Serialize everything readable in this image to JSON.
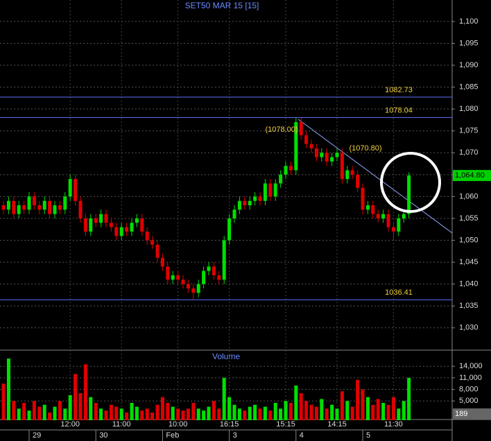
{
  "chart_data": {
    "type": "candlestick",
    "title": "SET50 MAR 15   [15]",
    "volume_title": "Volume",
    "categories": [
      null,
      null,
      null,
      null,
      null,
      null,
      null,
      null,
      null,
      null,
      null,
      null,
      null,
      "12:00",
      null,
      null,
      null,
      null,
      null,
      null,
      null,
      null,
      null,
      "11:00",
      null,
      null,
      null,
      null,
      null,
      null,
      null,
      null,
      null,
      null,
      "10:00",
      null,
      null,
      null,
      null,
      null,
      null,
      null,
      null,
      null,
      "16:15",
      null,
      null,
      null,
      null,
      null,
      null,
      null,
      null,
      null,
      null,
      "15:15",
      null,
      null,
      null,
      null,
      null,
      null,
      null,
      null,
      null,
      "14:15",
      null,
      null,
      null,
      null,
      null,
      null,
      null,
      null,
      null,
      null,
      "11:30",
      null,
      null,
      null
    ],
    "date_labels": [
      null,
      null,
      null,
      null,
      null,
      "29",
      null,
      null,
      null,
      null,
      null,
      null,
      null,
      null,
      null,
      null,
      null,
      null,
      "30",
      null,
      null,
      null,
      null,
      null,
      null,
      null,
      null,
      null,
      null,
      null,
      null,
      "Feb",
      null,
      null,
      null,
      null,
      null,
      null,
      null,
      null,
      null,
      null,
      null,
      null,
      "3",
      null,
      null,
      null,
      null,
      null,
      null,
      null,
      null,
      null,
      null,
      null,
      null,
      "4",
      null,
      null,
      null,
      null,
      null,
      null,
      null,
      null,
      null,
      null,
      null,
      null,
      "5",
      null,
      null,
      null,
      null,
      null,
      null,
      null,
      null,
      null
    ],
    "open": [
      1058,
      1057,
      1059,
      1056,
      1058,
      1057,
      1060,
      1058,
      1057,
      1059,
      1056,
      1058,
      1057,
      1060,
      1064,
      1059,
      1055,
      1052,
      1055,
      1054,
      1056,
      1054,
      1053,
      1051,
      1053,
      1052,
      1054,
      1055,
      1052,
      1050,
      1049,
      1046,
      1044,
      1041,
      1042,
      1041,
      1040,
      1039,
      1038,
      1040,
      1043,
      1044,
      1042,
      1041,
      1050,
      1055,
      1057,
      1059,
      1058,
      1059,
      1060,
      1059,
      1063,
      1060,
      1063,
      1065,
      1067,
      1066,
      1077,
      1074,
      1072,
      1071,
      1069,
      1070,
      1068,
      1069,
      1070,
      1064,
      1066,
      1065,
      1062,
      1057,
      1058,
      1056,
      1055,
      1056,
      1053,
      1052,
      1055,
      1056
    ],
    "high": [
      1059,
      1060,
      1060,
      1059,
      1059,
      1061,
      1061,
      1059,
      1060,
      1060,
      1059,
      1059,
      1061,
      1065,
      1065,
      1060,
      1056,
      1056,
      1056,
      1057,
      1057,
      1055,
      1054,
      1054,
      1054,
      1055,
      1056,
      1056,
      1053,
      1051,
      1050,
      1047,
      1045,
      1043,
      1043,
      1042,
      1041,
      1040,
      1041,
      1044,
      1045,
      1045,
      1043,
      1051,
      1056,
      1058,
      1060,
      1060,
      1060,
      1061,
      1061,
      1064,
      1064,
      1064,
      1066,
      1068,
      1068,
      1078,
      1078,
      1075,
      1073,
      1072,
      1071,
      1071,
      1070,
      1071,
      1071,
      1067,
      1067,
      1066,
      1063,
      1059,
      1059,
      1057,
      1057,
      1057,
      1054,
      1056,
      1057,
      1065.5
    ],
    "low": [
      1056,
      1056,
      1055,
      1055,
      1056,
      1056,
      1057,
      1056,
      1056,
      1055,
      1055,
      1056,
      1056,
      1059,
      1058,
      1054,
      1051,
      1051,
      1053,
      1053,
      1053,
      1052,
      1050,
      1050,
      1051,
      1051,
      1053,
      1051,
      1049,
      1048,
      1045,
      1043,
      1040,
      1040,
      1040,
      1039,
      1038,
      1036.5,
      1037,
      1039,
      1042,
      1041,
      1040,
      1040,
      1049,
      1054,
      1056,
      1057,
      1057,
      1058,
      1058,
      1058,
      1059,
      1059,
      1062,
      1064,
      1065,
      1065,
      1073,
      1071,
      1070,
      1068,
      1068,
      1067,
      1067,
      1068,
      1063,
      1063,
      1064,
      1061,
      1056,
      1056,
      1055,
      1054,
      1054,
      1052,
      1050,
      1051,
      1054,
      1055
    ],
    "close": [
      1057,
      1059,
      1056,
      1058,
      1057,
      1060,
      1058,
      1057,
      1059,
      1056,
      1058,
      1057,
      1060,
      1064,
      1059,
      1055,
      1052,
      1055,
      1054,
      1056,
      1054,
      1053,
      1051,
      1053,
      1052,
      1054,
      1055,
      1052,
      1050,
      1049,
      1046,
      1044,
      1041,
      1042,
      1041,
      1040,
      1039,
      1038,
      1040,
      1043,
      1044,
      1042,
      1041,
      1050,
      1055,
      1057,
      1059,
      1058,
      1059,
      1060,
      1059,
      1063,
      1060,
      1063,
      1065,
      1067,
      1066,
      1077,
      1074,
      1072,
      1071,
      1069,
      1070,
      1068,
      1069,
      1070,
      1064,
      1066,
      1065,
      1062,
      1057,
      1058,
      1056,
      1055,
      1056,
      1053,
      1052,
      1055,
      1056,
      1064.8
    ],
    "volume": [
      9500,
      16000,
      5000,
      3000,
      4500,
      2500,
      5000,
      3500,
      4000,
      2000,
      3500,
      5000,
      3000,
      6500,
      12000,
      7000,
      14500,
      6000,
      4500,
      3000,
      2500,
      4000,
      3500,
      3000,
      2000,
      4500,
      3500,
      2500,
      3000,
      2000,
      4000,
      6000,
      4500,
      3500,
      3000,
      2500,
      3000,
      4500,
      3000,
      2500,
      3500,
      5000,
      3000,
      11000,
      6000,
      4000,
      3000,
      2500,
      3500,
      4000,
      3000,
      3500,
      2500,
      4500,
      3000,
      5000,
      4500,
      9000,
      7000,
      5000,
      4000,
      3500,
      5500,
      3000,
      4000,
      3000,
      7500,
      5000,
      3500,
      10500,
      8000,
      6000,
      4000,
      5500,
      4500,
      4000,
      6000,
      3000,
      5000,
      11000
    ],
    "up_color": "#00e000",
    "down_color": "#e00000",
    "ylim": [
      1024.9,
      1104.9
    ],
    "yticks": [
      {
        "value": 1030,
        "label": "1,030"
      },
      {
        "value": 1035,
        "label": "1,035"
      },
      {
        "value": 1040,
        "label": "1,040"
      },
      {
        "value": 1045,
        "label": "1,045"
      },
      {
        "value": 1050,
        "label": "1,050"
      },
      {
        "value": 1055,
        "label": "1,055"
      },
      {
        "value": 1060,
        "label": "1,060"
      },
      {
        "value": 1065,
        "label": "1,065"
      },
      {
        "value": 1070,
        "label": "1,070"
      },
      {
        "value": 1075,
        "label": "1,075"
      },
      {
        "value": 1080,
        "label": "1,080"
      },
      {
        "value": 1085,
        "label": "1,085"
      },
      {
        "value": 1090,
        "label": "1,090"
      },
      {
        "value": 1095,
        "label": "1,095"
      },
      {
        "value": 1100,
        "label": "1,100"
      }
    ],
    "y2lim": [
      0,
      18000
    ],
    "y2ticks": [
      {
        "value": 5000,
        "label": "5,000"
      },
      {
        "value": 8000,
        "label": "8,000"
      },
      {
        "value": 11000,
        "label": "11,000"
      },
      {
        "value": 14000,
        "label": "14,000"
      }
    ],
    "levels": [
      1082.73,
      1078.04,
      1036.41
    ],
    "annotations": [
      "(1078.00)",
      "(1070.80)"
    ],
    "last_price": {
      "value": 1064.8,
      "label": "1,064.80"
    },
    "last_volume_label": 189,
    "grid": true
  }
}
